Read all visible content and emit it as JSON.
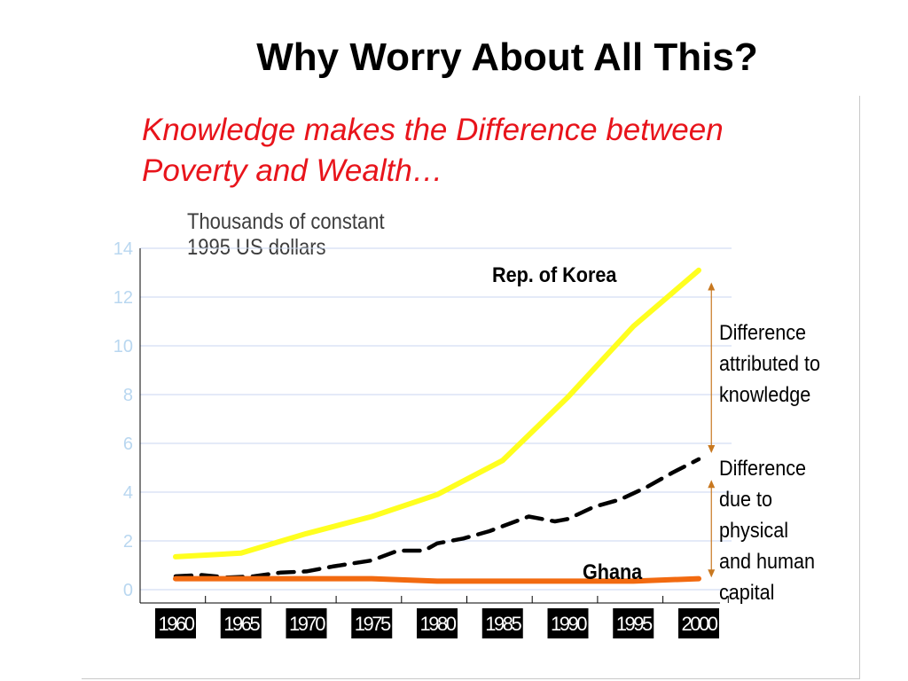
{
  "title": "Why Worry About All This?",
  "subtitle_lines": [
    "Knowledge makes the Difference between",
    "Poverty and Wealth…"
  ],
  "colors": {
    "subtitle": "#e8141b",
    "korea": "#ffff1f",
    "ghana": "#f26a10",
    "predicted": "#000000",
    "arrow": "#c87820",
    "grid": "#c8d6f0",
    "ytick": "#b9d7f0"
  },
  "chart_data": {
    "type": "line",
    "ylabel": "Thousands of constant 1995 US dollars",
    "ylabel_lines": [
      "Thousands of constant",
      "1995 US dollars"
    ],
    "ylim": [
      0,
      14
    ],
    "yticks": [
      "0",
      "2",
      "4",
      "6",
      "8",
      "10",
      "12",
      "14"
    ],
    "grid": "horizontal",
    "categories": [
      "1960",
      "1965",
      "1970",
      "1975",
      "1980",
      "1985",
      "1990",
      "1995",
      "2000"
    ],
    "x": [
      1960,
      1965,
      1970,
      1975,
      1980,
      1985,
      1990,
      1995,
      2000
    ],
    "series": [
      {
        "name": "Rep. of Korea",
        "key": "korea",
        "style": "solid",
        "points": [
          [
            1960,
            1.35
          ],
          [
            1965,
            1.5
          ],
          [
            1970,
            2.3
          ],
          [
            1975,
            3.0
          ],
          [
            1980,
            3.9
          ],
          [
            1985,
            5.3
          ],
          [
            1990,
            7.9
          ],
          [
            1995,
            10.8
          ],
          [
            2000,
            13.1
          ]
        ]
      },
      {
        "name": "",
        "key": "predicted",
        "style": "dashed",
        "points": [
          [
            1960,
            0.55
          ],
          [
            1962,
            0.6
          ],
          [
            1964,
            0.5
          ],
          [
            1966,
            0.55
          ],
          [
            1968,
            0.7
          ],
          [
            1970,
            0.75
          ],
          [
            1972,
            0.95
          ],
          [
            1975,
            1.2
          ],
          [
            1977,
            1.6
          ],
          [
            1979,
            1.6
          ],
          [
            1980,
            1.9
          ],
          [
            1982,
            2.1
          ],
          [
            1984,
            2.4
          ],
          [
            1986,
            2.8
          ],
          [
            1987,
            3.0
          ],
          [
            1989,
            2.8
          ],
          [
            1990,
            2.9
          ],
          [
            1992,
            3.4
          ],
          [
            1994,
            3.7
          ],
          [
            1996,
            4.2
          ],
          [
            1998,
            4.8
          ],
          [
            2000,
            5.35
          ]
        ]
      },
      {
        "name": "Ghana",
        "key": "ghana",
        "style": "solid",
        "points": [
          [
            1960,
            0.45
          ],
          [
            1965,
            0.45
          ],
          [
            1970,
            0.45
          ],
          [
            1975,
            0.45
          ],
          [
            1980,
            0.35
          ],
          [
            1985,
            0.35
          ],
          [
            1990,
            0.35
          ],
          [
            1995,
            0.35
          ],
          [
            2000,
            0.45
          ]
        ]
      }
    ],
    "annotations": [
      {
        "key": "knowledge",
        "lines": [
          "Difference",
          "attributed to",
          "knowledge"
        ],
        "year": 2001,
        "from": 5.6,
        "to": 12.6
      },
      {
        "key": "capital",
        "lines": [
          "Difference",
          "due to",
          "physical",
          "and human",
          "capital"
        ],
        "year": 2001,
        "from": 0.5,
        "to": 4.5
      }
    ]
  }
}
